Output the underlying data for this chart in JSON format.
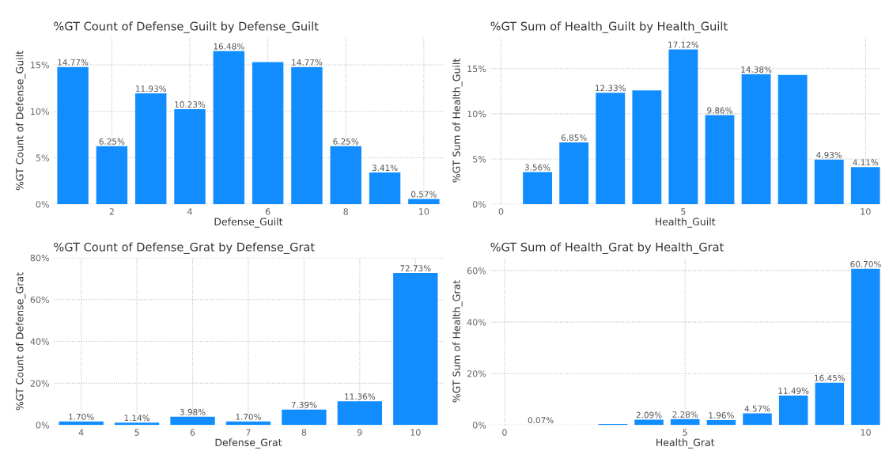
{
  "chart_data": [
    {
      "type": "bar",
      "title": "%GT Count of Defense_Guilt by Defense_Guilt",
      "xlabel": "Defense_Guilt",
      "ylabel": "%GT Count of Defense_Guilt",
      "x": [
        1,
        2,
        3,
        4,
        5,
        6,
        7,
        8,
        9,
        10
      ],
      "values": [
        14.77,
        6.25,
        11.93,
        10.23,
        16.48,
        15.3,
        14.77,
        6.25,
        3.41,
        0.57
      ],
      "value_labels": [
        "14.77%",
        "6.25%",
        "11.93%",
        "10.23%",
        "16.48%",
        null,
        "14.77%",
        "6.25%",
        "3.41%",
        "0.57%"
      ],
      "color": "#118dff",
      "xlim": [
        0.5,
        10.5
      ],
      "xticks": [
        2,
        4,
        6,
        8,
        10
      ],
      "ylim": [
        0,
        18
      ],
      "yticks": [
        {
          "value": 0,
          "label": "0%"
        },
        {
          "value": 5,
          "label": "5%"
        },
        {
          "value": 10,
          "label": "10%"
        },
        {
          "value": 15,
          "label": "15%"
        }
      ],
      "grid": true
    },
    {
      "type": "bar",
      "title": "%GT Sum of Health_Guilt by Health_Guilt",
      "xlabel": "Health_Guilt",
      "ylabel": "%GT Sum of Health_Guilt",
      "x": [
        1,
        2,
        3,
        4,
        5,
        6,
        7,
        8,
        9,
        10
      ],
      "values": [
        3.56,
        6.85,
        12.33,
        12.6,
        17.12,
        9.86,
        14.38,
        14.3,
        4.93,
        4.11
      ],
      "value_labels": [
        "3.56%",
        "6.85%",
        "12.33%",
        null,
        "17.12%",
        "9.86%",
        "14.38%",
        null,
        "4.93%",
        "4.11%"
      ],
      "color": "#118dff",
      "xlim": [
        -0.3,
        10.4
      ],
      "xticks": [
        0,
        5,
        10
      ],
      "ylim": [
        0,
        18.5
      ],
      "yticks": [
        {
          "value": 0,
          "label": "0%"
        },
        {
          "value": 5,
          "label": "5%"
        },
        {
          "value": 10,
          "label": "10%"
        },
        {
          "value": 15,
          "label": "15%"
        }
      ],
      "grid": true
    },
    {
      "type": "bar",
      "title": "%GT Count of Defense_Grat by Defense_Grat",
      "xlabel": "Defense_Grat",
      "ylabel": "%GT Count of Defense_Grat",
      "categories": [
        "4",
        "5",
        "6",
        "7",
        "8",
        "9",
        "10"
      ],
      "values": [
        1.7,
        1.14,
        3.98,
        1.7,
        7.39,
        11.36,
        72.73
      ],
      "value_labels": [
        "1.70%",
        "1.14%",
        "3.98%",
        "1.70%",
        "7.39%",
        "11.36%",
        "72.73%"
      ],
      "color": "#118dff",
      "ylim": [
        0,
        80
      ],
      "yticks": [
        {
          "value": 0,
          "label": "0%"
        },
        {
          "value": 20,
          "label": "20%"
        },
        {
          "value": 40,
          "label": "40%"
        },
        {
          "value": 60,
          "label": "60%"
        },
        {
          "value": 80,
          "label": "80%"
        }
      ],
      "grid": true
    },
    {
      "type": "bar",
      "title": "%GT Sum of Health_Grat by Health_Grat",
      "xlabel": "Health_Grat",
      "ylabel": "%GT Sum of Health_Grat",
      "x": [
        1,
        2,
        3,
        4,
        5,
        6,
        7,
        8,
        9,
        10
      ],
      "values": [
        0.07,
        null,
        0.4,
        2.09,
        2.28,
        1.96,
        4.57,
        11.49,
        16.45,
        60.7
      ],
      "value_labels": [
        "0.07%",
        null,
        null,
        "2.09%",
        "2.28%",
        "1.96%",
        "4.57%",
        "11.49%",
        "16.45%",
        "60.70%"
      ],
      "color": "#118dff",
      "xlim": [
        -0.4,
        10.4
      ],
      "xticks": [
        0,
        5,
        10
      ],
      "ylim": [
        0,
        65
      ],
      "yticks": [
        {
          "value": 0,
          "label": "0%"
        },
        {
          "value": 20,
          "label": "20%"
        },
        {
          "value": 40,
          "label": "40%"
        },
        {
          "value": 60,
          "label": "60%"
        }
      ],
      "grid": true
    }
  ]
}
